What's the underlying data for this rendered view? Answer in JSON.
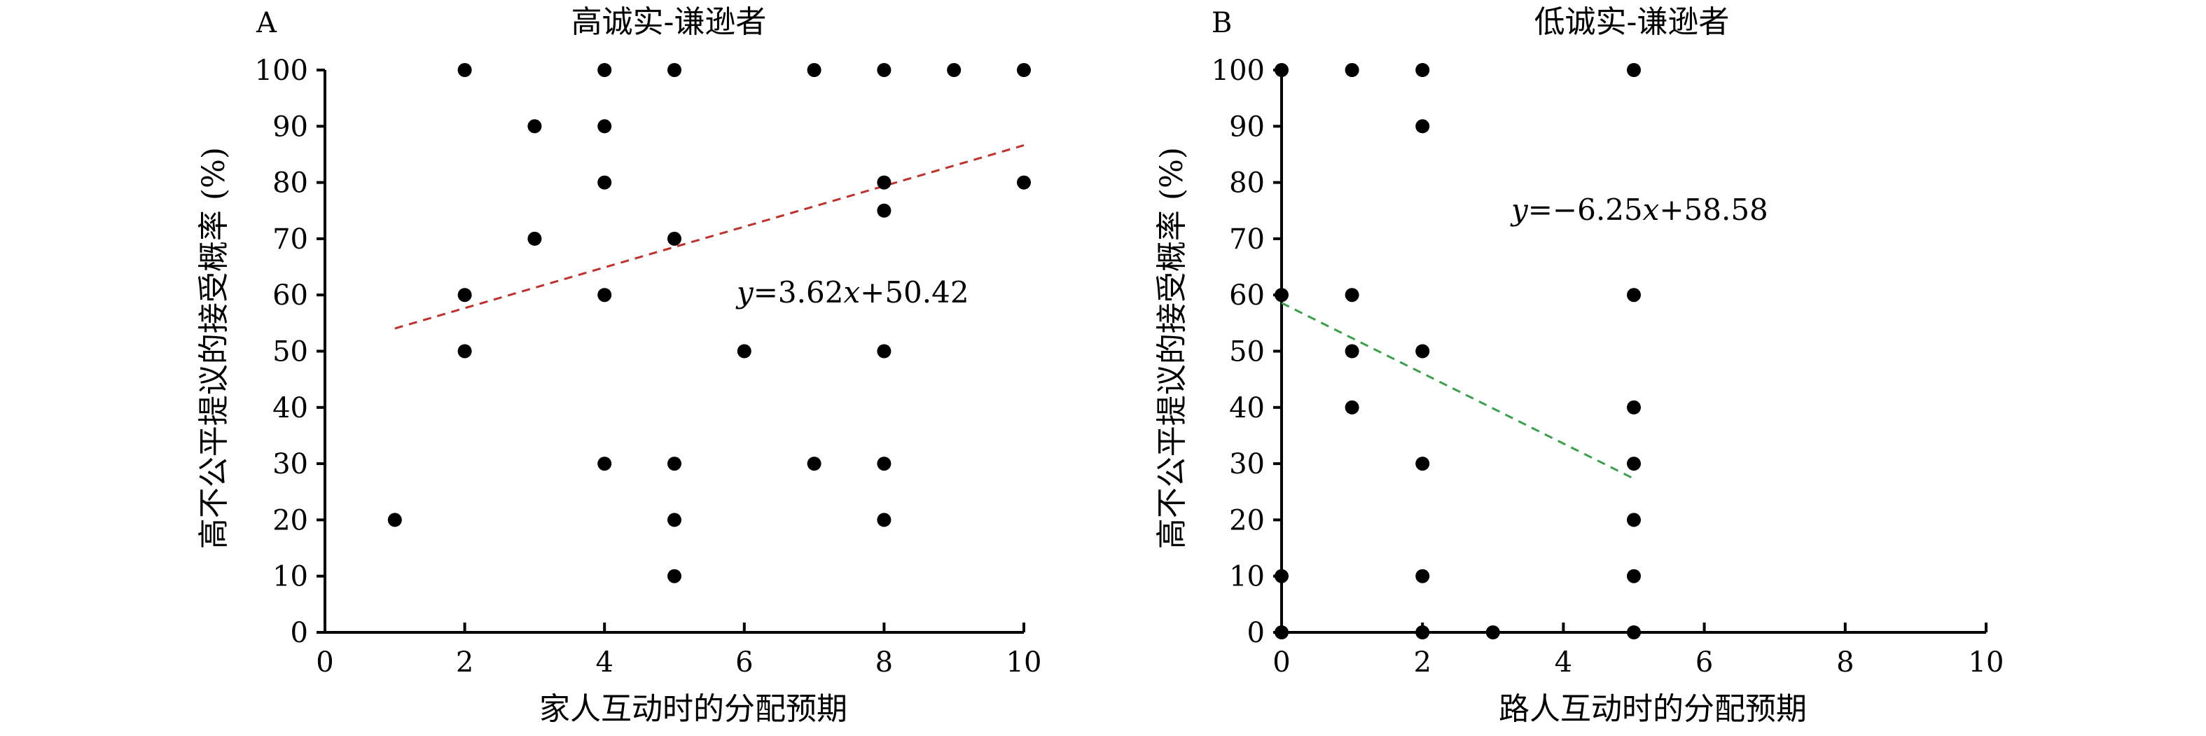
{
  "chart_data": [
    {
      "type": "scatter",
      "panel_letter": "A",
      "title": "高诚实-谦逊者",
      "xlabel": "家人互动时的分配预期",
      "ylabel": "高不公平提议的接受概率 (%)",
      "xlim": [
        0,
        10
      ],
      "ylim": [
        0,
        100
      ],
      "xticks": [
        "0",
        "2",
        "4",
        "6",
        "8",
        "10"
      ],
      "yticks": [
        "0",
        "10",
        "20",
        "30",
        "40",
        "50",
        "60",
        "70",
        "80",
        "90",
        "100"
      ],
      "points": [
        {
          "x": 1,
          "y": 20
        },
        {
          "x": 2,
          "y": 100
        },
        {
          "x": 2,
          "y": 60
        },
        {
          "x": 2,
          "y": 50
        },
        {
          "x": 3,
          "y": 90
        },
        {
          "x": 3,
          "y": 70
        },
        {
          "x": 4,
          "y": 100
        },
        {
          "x": 4,
          "y": 90
        },
        {
          "x": 4,
          "y": 80
        },
        {
          "x": 4,
          "y": 60
        },
        {
          "x": 4,
          "y": 30
        },
        {
          "x": 5,
          "y": 100
        },
        {
          "x": 5,
          "y": 70
        },
        {
          "x": 5,
          "y": 30
        },
        {
          "x": 5,
          "y": 20
        },
        {
          "x": 5,
          "y": 10
        },
        {
          "x": 6,
          "y": 50
        },
        {
          "x": 7,
          "y": 100
        },
        {
          "x": 7,
          "y": 30
        },
        {
          "x": 8,
          "y": 100
        },
        {
          "x": 8,
          "y": 80
        },
        {
          "x": 8,
          "y": 75
        },
        {
          "x": 8,
          "y": 50
        },
        {
          "x": 8,
          "y": 30
        },
        {
          "x": 8,
          "y": 20
        },
        {
          "x": 9,
          "y": 100
        },
        {
          "x": 10,
          "y": 100
        },
        {
          "x": 10,
          "y": 80
        }
      ],
      "fit": {
        "slope": 3.62,
        "intercept": 50.42,
        "x_range": [
          1,
          10
        ],
        "color": "#c0302c",
        "style": "dashed",
        "equation": {
          "y": "y",
          "eq_a": "=3.62",
          "x": "x",
          "eq_b": "+50.42"
        }
      },
      "marker_color": "#000000",
      "grid": false
    },
    {
      "type": "scatter",
      "panel_letter": "B",
      "title": "低诚实-谦逊者",
      "xlabel": "路人互动时的分配预期",
      "ylabel": "高不公平提议的接受概率 (%)",
      "xlim": [
        0,
        10
      ],
      "ylim": [
        0,
        100
      ],
      "xticks": [
        "0",
        "2",
        "4",
        "6",
        "8",
        "10"
      ],
      "yticks": [
        "0",
        "10",
        "20",
        "30",
        "40",
        "50",
        "60",
        "70",
        "80",
        "90",
        "100"
      ],
      "points": [
        {
          "x": 0,
          "y": 100
        },
        {
          "x": 0,
          "y": 60
        },
        {
          "x": 0,
          "y": 10
        },
        {
          "x": 0,
          "y": 0
        },
        {
          "x": 1,
          "y": 100
        },
        {
          "x": 1,
          "y": 60
        },
        {
          "x": 1,
          "y": 50
        },
        {
          "x": 1,
          "y": 40
        },
        {
          "x": 2,
          "y": 100
        },
        {
          "x": 2,
          "y": 90
        },
        {
          "x": 2,
          "y": 50
        },
        {
          "x": 2,
          "y": 30
        },
        {
          "x": 2,
          "y": 10
        },
        {
          "x": 2,
          "y": 0
        },
        {
          "x": 3,
          "y": 0
        },
        {
          "x": 5,
          "y": 100
        },
        {
          "x": 5,
          "y": 60
        },
        {
          "x": 5,
          "y": 40
        },
        {
          "x": 5,
          "y": 30
        },
        {
          "x": 5,
          "y": 20
        },
        {
          "x": 5,
          "y": 10
        },
        {
          "x": 5,
          "y": 0
        }
      ],
      "fit": {
        "slope": -6.25,
        "intercept": 58.58,
        "x_range": [
          0,
          5
        ],
        "color": "#3aa04a",
        "style": "dashed",
        "equation": {
          "y": "y",
          "eq_a": "=−6.25",
          "x": "x",
          "eq_b": "+58.58"
        }
      },
      "marker_color": "#000000",
      "grid": false
    }
  ]
}
